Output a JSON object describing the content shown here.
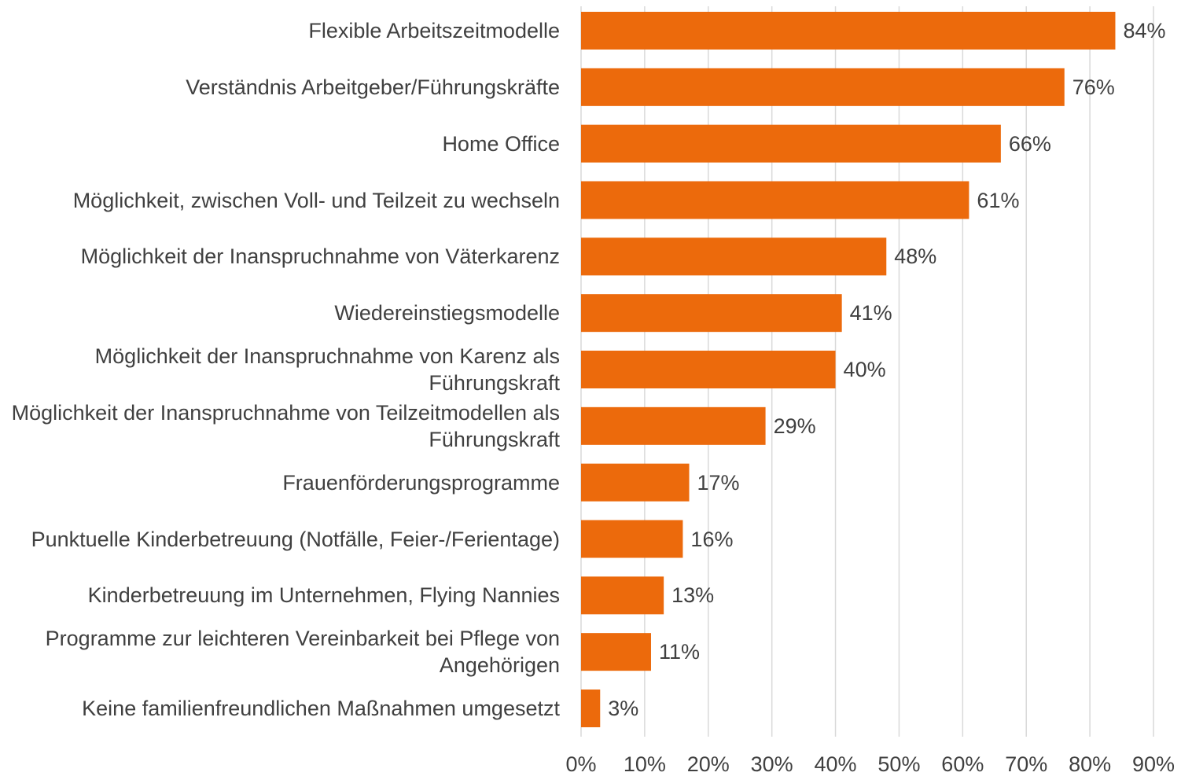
{
  "chart_data": {
    "type": "barh",
    "categories": [
      "Flexible Arbeitszeitmodelle",
      "Verständnis Arbeitgeber/Führungskräfte",
      "Home Office",
      "Möglichkeit, zwischen Voll- und Teilzeit zu wechseln",
      "Möglichkeit der Inanspruchnahme von Väterkarenz",
      "Wiedereinstiegsmodelle",
      "Möglichkeit der Inanspruchnahme von Karenz als Führungskraft",
      "Möglichkeit der Inanspruchnahme von Teilzeitmodellen als Führungskraft",
      "Frauenförderungsprogramme",
      "Punktuelle Kinderbetreuung (Notfälle, Feier-/Ferientage)",
      "Kinderbetreuung im Unternehmen, Flying Nannies",
      "Programme zur leichteren Vereinbarkeit bei Pflege von Angehörigen",
      "Keine familienfreundlichen Maßnahmen umgesetzt"
    ],
    "values": [
      84,
      76,
      66,
      61,
      48,
      41,
      40,
      29,
      17,
      16,
      13,
      11,
      3
    ],
    "value_labels": [
      "84%",
      "76%",
      "66%",
      "61%",
      "48%",
      "41%",
      "40%",
      "29%",
      "17%",
      "16%",
      "13%",
      "11%",
      "3%"
    ],
    "color": "#ec6a0c",
    "xlim": [
      0,
      90
    ],
    "xticks": [
      {
        "value": 0,
        "label": "0%"
      },
      {
        "value": 10,
        "label": "10%"
      },
      {
        "value": 20,
        "label": "20%"
      },
      {
        "value": 30,
        "label": "30%"
      },
      {
        "value": 40,
        "label": "40%"
      },
      {
        "value": 50,
        "label": "50%"
      },
      {
        "value": 60,
        "label": "60%"
      },
      {
        "value": 70,
        "label": "70%"
      },
      {
        "value": 80,
        "label": "80%"
      },
      {
        "value": 90,
        "label": "90%"
      }
    ],
    "grid": true
  }
}
